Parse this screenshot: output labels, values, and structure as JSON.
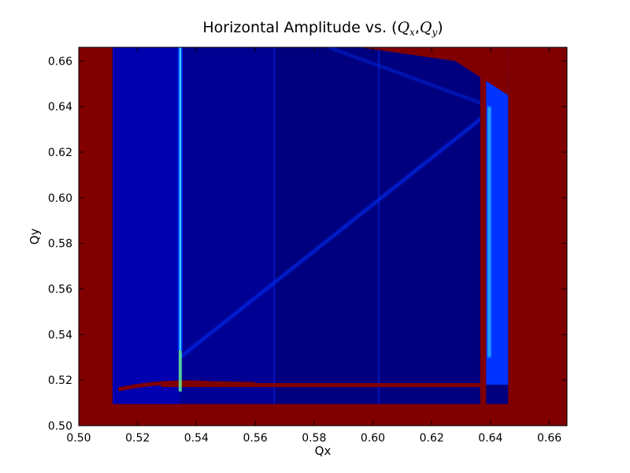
{
  "chart_data": {
    "type": "heatmap",
    "title": "Horizontal Amplitude vs. (Q_x, Q_y)",
    "title_parts": {
      "prefix": "Horizontal Amplitude vs. ",
      "open": "(",
      "var1": "Q",
      "sub1": "x",
      "sep": ",",
      "var2": "Q",
      "sub2": "y",
      "close": ")"
    },
    "xlabel": "Qx",
    "ylabel": "Qy",
    "xlim": [
      0.5,
      0.666
    ],
    "ylim": [
      0.5,
      0.666
    ],
    "x_ticks": [
      "0.50",
      "0.52",
      "0.54",
      "0.56",
      "0.58",
      "0.60",
      "0.62",
      "0.64",
      "0.66"
    ],
    "y_ticks": [
      "0.50",
      "0.52",
      "0.54",
      "0.56",
      "0.58",
      "0.60",
      "0.62",
      "0.64",
      "0.66"
    ],
    "colormap": "jet",
    "colors": {
      "saturated": "#800000",
      "background_low": "#00007f",
      "mid_blue": "#0000d8",
      "band_blue": "#0033ff",
      "resonance_cyan": "#33ccff",
      "resonance_green": "#66ff99"
    },
    "regions": {
      "tune_box": {
        "qx": [
          0.5115,
          0.646
        ],
        "qy": [
          0.5095,
          0.666
        ]
      },
      "vertical_resonance_qx": 0.5345,
      "horizontal_band_qy": 0.518,
      "right_band_qx": [
        0.6385,
        0.646
      ],
      "diagonal_resonance": {
        "from": [
          0.5345,
          0.53
        ],
        "to": [
          0.64,
          0.638
        ]
      },
      "anti_diagonal_resonance": {
        "from": [
          0.585,
          0.666
        ],
        "to": [
          0.64,
          0.64
        ]
      },
      "faint_vertical_lines_qx": [
        0.5665,
        0.602
      ]
    }
  }
}
